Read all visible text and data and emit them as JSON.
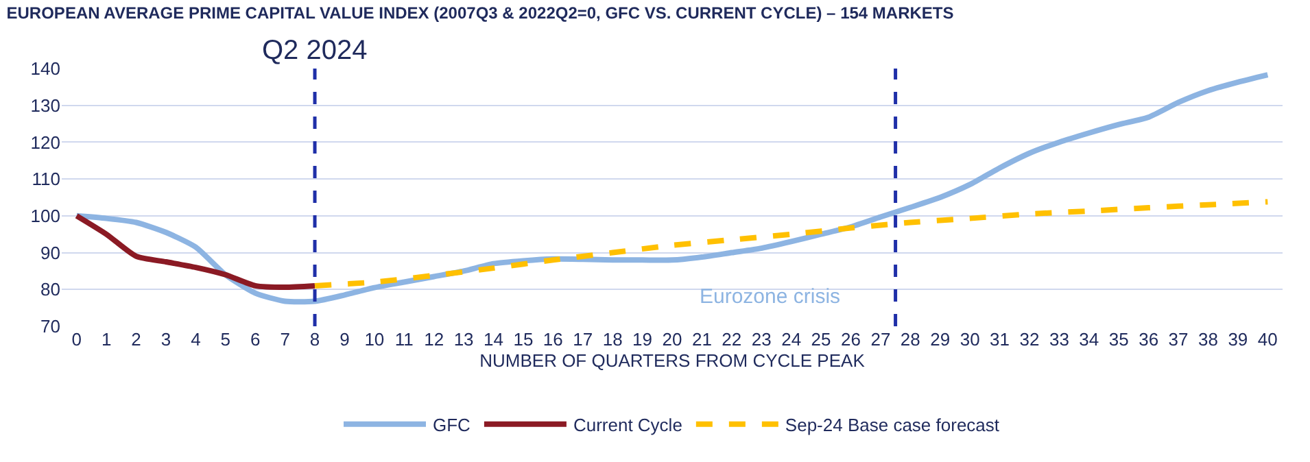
{
  "chart_data": {
    "type": "line",
    "title": "EUROPEAN AVERAGE PRIME CAPITAL VALUE INDEX (2007Q3 & 2022Q2=0, GFC VS. CURRENT CYCLE) – 154 MARKETS",
    "xlabel": "NUMBER OF QUARTERS FROM CYCLE PEAK",
    "xlim": [
      -0.5,
      40.5
    ],
    "xticks": [
      0,
      1,
      2,
      3,
      4,
      5,
      6,
      7,
      8,
      9,
      10,
      11,
      12,
      13,
      14,
      15,
      16,
      17,
      18,
      19,
      20,
      21,
      22,
      23,
      24,
      25,
      26,
      27,
      28,
      29,
      30,
      31,
      32,
      33,
      34,
      35,
      36,
      37,
      38,
      39,
      40
    ],
    "ylim": [
      70,
      140
    ],
    "yticks": [
      70,
      80,
      90,
      100,
      110,
      120,
      130,
      140
    ],
    "grid": "y",
    "legend": "bottom",
    "marker": "none",
    "series": [
      {
        "name": "GFC",
        "color": "#8db4e2",
        "line_style": "solid",
        "x": [
          0,
          1,
          2,
          3,
          4,
          5,
          6,
          7,
          8,
          9,
          10,
          11,
          12,
          13,
          14,
          15,
          16,
          17,
          18,
          19,
          20,
          21,
          22,
          23,
          24,
          25,
          26,
          27,
          28,
          29,
          30,
          31,
          32,
          33,
          34,
          35,
          36,
          37,
          38,
          39,
          40
        ],
        "values": [
          100,
          99.3,
          98.2,
          95.5,
          91.5,
          84,
          79,
          76.8,
          76.8,
          78.5,
          80.5,
          82,
          83.5,
          85,
          87,
          87.8,
          88.3,
          88.2,
          88,
          88,
          88,
          88.8,
          90,
          91.2,
          93,
          95,
          97,
          99.7,
          102.3,
          105,
          108.5,
          113,
          117,
          120,
          122.5,
          124.8,
          126.8,
          130.8,
          134,
          136.3,
          138.3
        ]
      },
      {
        "name": "Current Cycle",
        "color": "#8b1a24",
        "line_style": "solid",
        "x": [
          0,
          1,
          2,
          3,
          4,
          5,
          6,
          7,
          8
        ],
        "values": [
          100,
          95,
          89,
          87.5,
          86,
          84,
          81,
          80.6,
          81
        ]
      },
      {
        "name": "Sep-24 Base case forecast",
        "color": "#ffc000",
        "line_style": "dashed",
        "x": [
          8,
          10,
          12,
          14,
          16,
          18,
          20,
          22,
          24,
          26,
          28,
          30,
          32,
          34,
          36,
          38,
          40
        ],
        "values": [
          81,
          82,
          83.8,
          85.8,
          88,
          90,
          92,
          93.5,
          95,
          96.7,
          98.2,
          99.3,
          100.5,
          101.3,
          102.2,
          103,
          103.8
        ]
      }
    ],
    "ref_lines": [
      {
        "axis": "x",
        "value": 8,
        "label": "Q2 2024",
        "color": "#1f2fa8",
        "line_style": "dashed"
      },
      {
        "axis": "x",
        "value": 27.5,
        "label": null,
        "color": "#1f2fa8",
        "line_style": "dashed"
      }
    ],
    "annotations": [
      "Eurozone crisis"
    ]
  }
}
